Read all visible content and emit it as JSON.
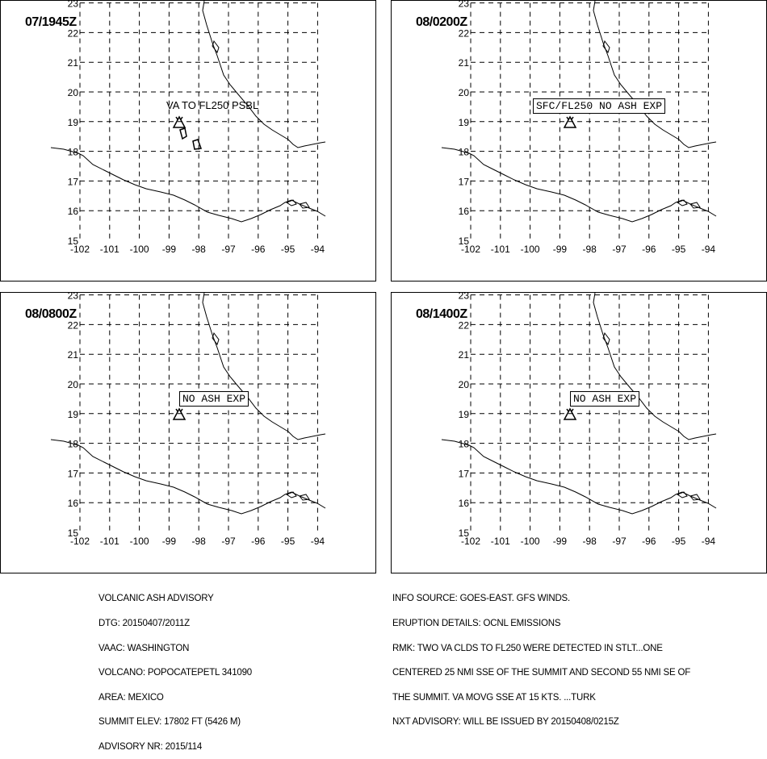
{
  "panels": [
    {
      "time": "07/1945Z",
      "label": "VA TO FL250 PSBL",
      "boxed": false,
      "ash": true
    },
    {
      "time": "08/0200Z",
      "label": "SFC/FL250 NO ASH EXP",
      "boxed": true,
      "ash": false
    },
    {
      "time": "08/0800Z",
      "label": "NO ASH EXP",
      "boxed": true,
      "ash": false
    },
    {
      "time": "08/1400Z",
      "label": "NO ASH EXP",
      "boxed": true,
      "ash": false
    }
  ],
  "map": {
    "lon_ticks": [
      "-102",
      "-101",
      "-100",
      "-99",
      "-98",
      "-97",
      "-96",
      "-95",
      "-94"
    ],
    "lat_ticks": [
      "15",
      "16",
      "17",
      "18",
      "19",
      "20",
      "21",
      "22",
      "23"
    ],
    "volcano_icon": "volcano-triangle-icon",
    "line_color": "#000000"
  },
  "advisory_left": [
    "VOLCANIC ASH ADVISORY",
    "DTG: 20150407/2011Z",
    "VAAC: WASHINGTON",
    "VOLCANO: POPOCATEPETL 341090",
    "AREA: MEXICO",
    "SUMMIT ELEV: 17802 FT (5426 M)",
    "ADVISORY NR: 2015/114"
  ],
  "advisory_right": [
    "INFO SOURCE: GOES-EAST. GFS WINDS.",
    "ERUPTION DETAILS: OCNL EMISSIONS",
    "RMK: TWO VA CLDS TO FL250 WERE DETECTED IN STLT...ONE",
    "CENTERED 25 NMI SSE OF THE SUMMIT AND SECOND 55 NMI SE OF",
    "THE SUMMIT. VA MOVG SSE AT 15 KTS. ...TURK",
    "NXT ADVISORY: WILL BE ISSUED BY 20150408/0215Z"
  ]
}
